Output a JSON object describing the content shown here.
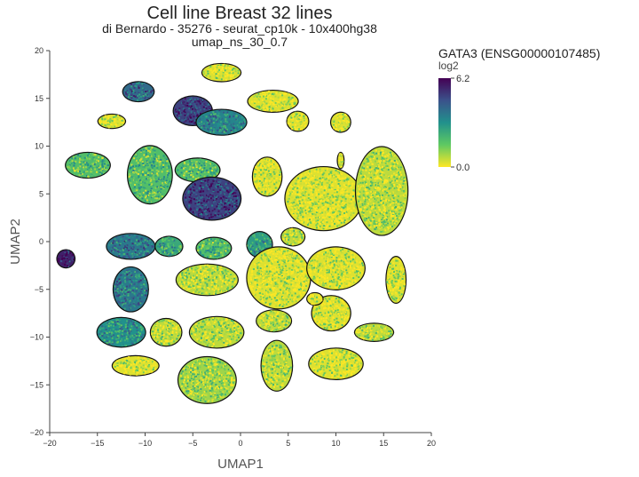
{
  "chart_data": {
    "type": "scatter",
    "title": "Cell line Breast 32 lines",
    "subtitle_1": "di Bernardo - 35276 - seurat_cp10k - 10x400hg38",
    "subtitle_2": "umap_ns_30_0.7",
    "xlabel": "UMAP1",
    "ylabel": "UMAP2",
    "xlim": [
      -20,
      20
    ],
    "ylim": [
      -20,
      20
    ],
    "x_ticks": [
      -20,
      -15,
      -10,
      -5,
      0,
      5,
      10,
      15,
      20
    ],
    "y_ticks": [
      -20,
      -15,
      -10,
      -5,
      0,
      5,
      10,
      15,
      20
    ],
    "grid": false,
    "colorbar": {
      "title": "GATA3 (ENSG00000107485)",
      "unit": "log2",
      "min": 0.0,
      "max": 6.2,
      "min_label": "0.0",
      "max_label": "6.2",
      "colors": [
        "#fde725",
        "#5ec962",
        "#21918c",
        "#3b528b",
        "#440154"
      ]
    },
    "clusters": [
      {
        "x": -2,
        "y": 17.7,
        "rx": 2.0,
        "ry": 0.9,
        "level": 0.05
      },
      {
        "x": 3.4,
        "y": 14.7,
        "rx": 2.6,
        "ry": 1.1,
        "level": 0.05
      },
      {
        "x": -10.7,
        "y": 15.7,
        "rx": 1.6,
        "ry": 1.0,
        "level": 0.65
      },
      {
        "x": -5.0,
        "y": 13.7,
        "rx": 2.0,
        "ry": 1.5,
        "level": 0.8
      },
      {
        "x": -2.0,
        "y": 12.5,
        "rx": 2.6,
        "ry": 1.3,
        "level": 0.55
      },
      {
        "x": -13.5,
        "y": 12.6,
        "rx": 1.4,
        "ry": 0.7,
        "level": 0.05
      },
      {
        "x": 10.5,
        "y": 12.5,
        "rx": 1.0,
        "ry": 1.0,
        "level": 0.05
      },
      {
        "x": 6.0,
        "y": 12.6,
        "rx": 1.1,
        "ry": 1.0,
        "level": 0.05
      },
      {
        "x": -16.0,
        "y": 8.0,
        "rx": 2.3,
        "ry": 1.3,
        "level": 0.3
      },
      {
        "x": -9.5,
        "y": 7.0,
        "rx": 2.3,
        "ry": 3.0,
        "level": 0.3
      },
      {
        "x": -4.5,
        "y": 7.5,
        "rx": 2.3,
        "ry": 1.2,
        "level": 0.3
      },
      {
        "x": 2.8,
        "y": 6.8,
        "rx": 1.5,
        "ry": 2.0,
        "level": 0.05
      },
      {
        "x": 8.7,
        "y": 4.5,
        "rx": 4.0,
        "ry": 3.3,
        "level": 0.05
      },
      {
        "x": 14.8,
        "y": 5.3,
        "rx": 2.7,
        "ry": 4.6,
        "level": 0.1
      },
      {
        "x": -3.0,
        "y": 4.5,
        "rx": 3.0,
        "ry": 2.2,
        "level": 0.8
      },
      {
        "x": 10.5,
        "y": 8.5,
        "rx": 0.3,
        "ry": 0.8,
        "level": 0.05
      },
      {
        "x": -18.3,
        "y": -1.8,
        "rx": 0.9,
        "ry": 0.9,
        "level": 0.9
      },
      {
        "x": -11.5,
        "y": -0.5,
        "rx": 2.5,
        "ry": 1.3,
        "level": 0.6
      },
      {
        "x": -7.5,
        "y": -0.5,
        "rx": 1.4,
        "ry": 1.0,
        "level": 0.4
      },
      {
        "x": -2.8,
        "y": -0.7,
        "rx": 1.8,
        "ry": 1.1,
        "level": 0.3
      },
      {
        "x": 2.0,
        "y": -0.3,
        "rx": 1.3,
        "ry": 1.3,
        "level": 0.45
      },
      {
        "x": 5.5,
        "y": 0.5,
        "rx": 1.2,
        "ry": 0.9,
        "level": 0.1
      },
      {
        "x": -11.5,
        "y": -5.0,
        "rx": 1.8,
        "ry": 2.3,
        "level": 0.6
      },
      {
        "x": -3.5,
        "y": -4.0,
        "rx": 3.2,
        "ry": 1.6,
        "level": 0.1
      },
      {
        "x": 4.0,
        "y": -3.8,
        "rx": 3.3,
        "ry": 3.2,
        "level": 0.05
      },
      {
        "x": 10.0,
        "y": -2.8,
        "rx": 3.0,
        "ry": 2.2,
        "level": 0.05
      },
      {
        "x": 16.3,
        "y": -4.0,
        "rx": 1.0,
        "ry": 2.4,
        "level": 0.05
      },
      {
        "x": -12.5,
        "y": -9.5,
        "rx": 2.5,
        "ry": 1.5,
        "level": 0.5
      },
      {
        "x": -7.8,
        "y": -9.5,
        "rx": 1.6,
        "ry": 1.4,
        "level": 0.1
      },
      {
        "x": -2.5,
        "y": -9.5,
        "rx": 2.8,
        "ry": 1.6,
        "level": 0.1
      },
      {
        "x": 3.5,
        "y": -8.3,
        "rx": 1.8,
        "ry": 1.1,
        "level": 0.1
      },
      {
        "x": 9.5,
        "y": -7.5,
        "rx": 2.0,
        "ry": 1.8,
        "level": 0.05
      },
      {
        "x": 14.0,
        "y": -9.5,
        "rx": 2.0,
        "ry": 0.9,
        "level": 0.1
      },
      {
        "x": 7.8,
        "y": -6.0,
        "rx": 0.8,
        "ry": 0.6,
        "level": 0.05
      },
      {
        "x": -11.0,
        "y": -13.0,
        "rx": 2.4,
        "ry": 1.0,
        "level": 0.05
      },
      {
        "x": -3.5,
        "y": -14.5,
        "rx": 3.0,
        "ry": 2.4,
        "level": 0.15
      },
      {
        "x": 3.8,
        "y": -13.0,
        "rx": 1.6,
        "ry": 2.6,
        "level": 0.1
      },
      {
        "x": 10.0,
        "y": -12.8,
        "rx": 2.8,
        "ry": 1.6,
        "level": 0.05
      }
    ]
  }
}
